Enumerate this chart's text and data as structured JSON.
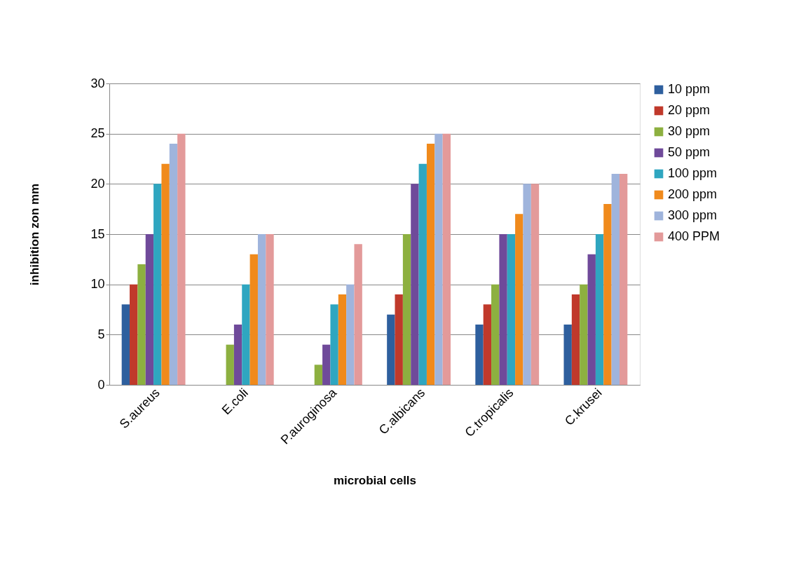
{
  "chart_data": {
    "type": "bar",
    "xlabel": "microbial cells",
    "ylabel": "inhibition zon mm",
    "categories": [
      "S.aureus",
      "E.coli",
      "P.auroginosa",
      "C.albicans",
      "C.tropicalis",
      "C.krusei"
    ],
    "series": [
      {
        "name": "10 ppm",
        "color": "#2e5f9e",
        "values": [
          8,
          0,
          0,
          7,
          6,
          6
        ]
      },
      {
        "name": "20 ppm",
        "color": "#c0392b",
        "values": [
          10,
          0,
          0,
          9,
          8,
          9
        ]
      },
      {
        "name": "30 ppm",
        "color": "#8db040",
        "values": [
          12,
          4,
          2,
          15,
          10,
          10
        ]
      },
      {
        "name": "50 ppm",
        "color": "#6f4a9a",
        "values": [
          15,
          6,
          4,
          20,
          15,
          13
        ]
      },
      {
        "name": "100 ppm",
        "color": "#2fa6c0",
        "values": [
          20,
          10,
          8,
          22,
          15,
          15
        ]
      },
      {
        "name": "200 ppm",
        "color": "#f08a1c",
        "values": [
          22,
          13,
          9,
          24,
          17,
          18
        ]
      },
      {
        "name": "300 ppm",
        "color": "#9fb4dc",
        "values": [
          24,
          15,
          10,
          25,
          20,
          21
        ]
      },
      {
        "name": "400 PPM",
        "color": "#e39a9a",
        "values": [
          25,
          15,
          14,
          25,
          20,
          21
        ]
      }
    ],
    "ylim": [
      0,
      30
    ],
    "yticks": [
      0,
      5,
      10,
      15,
      20,
      25,
      30
    ],
    "grid": "y",
    "legend": "right"
  }
}
